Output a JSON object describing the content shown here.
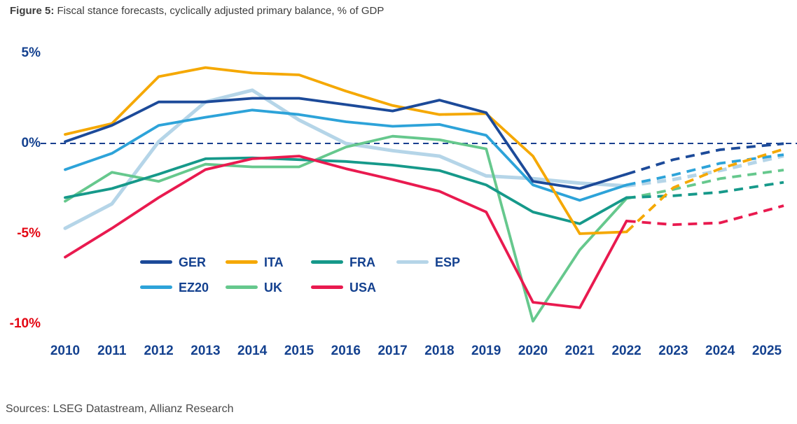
{
  "title": {
    "prefix": "Figure 5:",
    "text": " Fiscal stance forecasts, cyclically adjusted primary balance, % of GDP"
  },
  "footer": {
    "sources": "Sources: LSEG Datastream, Allianz Research"
  },
  "colors": {
    "axis_navy": "#14418f",
    "axis_red": "#e30613",
    "zero_line_navy": "#1a4090",
    "title_gray": "#3d3d3d",
    "sources_gray": "#4a4a4a"
  },
  "chart_data": {
    "type": "line",
    "title": "Fiscal stance forecasts, cyclically adjusted primary balance, % of GDP",
    "grid": false,
    "legend_position": "inside-bottom-left",
    "x": [
      2010,
      2011,
      2012,
      2013,
      2014,
      2015,
      2016,
      2017,
      2018,
      2019,
      2020,
      2021,
      2022,
      2023,
      2024,
      2025
    ],
    "x_labels": [
      "2010",
      "2011",
      "2012",
      "2013",
      "2014",
      "2015",
      "2016",
      "2017",
      "2018",
      "2019",
      "2020",
      "2021",
      "2022",
      "2023",
      "2024",
      "2025"
    ],
    "forecast_start_year": 2022,
    "forecast_style": "dashed",
    "ylim": [
      -10.5,
      5.5
    ],
    "yticks": [
      {
        "label": "5%",
        "value": 5,
        "color": "#14418f"
      },
      {
        "label": "0%",
        "value": 0,
        "color": "#14418f"
      },
      {
        "label": "-5%",
        "value": -5,
        "color": "#e30613"
      },
      {
        "label": "-10%",
        "value": -10,
        "color": "#e30613"
      }
    ],
    "zero_line": {
      "value": 0,
      "style": "dashed",
      "color": "#1a4090"
    },
    "series": [
      {
        "name": "GER",
        "color": "#1c4a99",
        "values": [
          0.1,
          1.0,
          2.3,
          2.3,
          2.5,
          2.5,
          2.15,
          1.8,
          2.4,
          1.7,
          -2.1,
          -2.5,
          -1.7,
          -0.9,
          -0.35,
          -0.1
        ]
      },
      {
        "name": "ITA",
        "color": "#f5a800",
        "values": [
          0.5,
          1.1,
          3.7,
          4.2,
          3.9,
          3.8,
          2.9,
          2.1,
          1.6,
          1.65,
          -0.7,
          -5.0,
          -4.9,
          -2.45,
          -1.4,
          -0.6
        ]
      },
      {
        "name": "FRA",
        "color": "#16998a",
        "values": [
          -3.0,
          -2.5,
          -1.7,
          -0.85,
          -0.8,
          -0.9,
          -1.0,
          -1.2,
          -1.5,
          -2.3,
          -3.8,
          -4.45,
          -3.0,
          -2.9,
          -2.7,
          -2.3
        ]
      },
      {
        "name": "ESP",
        "color": "#b5d5e8",
        "values": [
          -4.7,
          -3.35,
          0.1,
          2.3,
          2.95,
          1.3,
          0.0,
          -0.4,
          -0.7,
          -1.8,
          -1.95,
          -2.2,
          -2.35,
          -2.0,
          -1.5,
          -0.9
        ]
      },
      {
        "name": "EZ20",
        "color": "#2da3d9",
        "values": [
          -1.45,
          -0.55,
          1.0,
          1.45,
          1.85,
          1.6,
          1.2,
          0.95,
          1.05,
          0.45,
          -2.3,
          -3.15,
          -2.3,
          -1.75,
          -1.1,
          -0.75
        ]
      },
      {
        "name": "UK",
        "color": "#66c88d",
        "values": [
          -3.2,
          -1.6,
          -2.1,
          -1.15,
          -1.3,
          -1.3,
          -0.2,
          0.4,
          0.2,
          -0.3,
          -9.85,
          -5.9,
          -3.05,
          -2.55,
          -1.95,
          -1.6
        ]
      },
      {
        "name": "USA",
        "color": "#e91a4f",
        "values": [
          -6.3,
          -4.7,
          -3.0,
          -1.45,
          -0.85,
          -0.7,
          -1.4,
          -2.0,
          -2.65,
          -3.8,
          -8.8,
          -9.1,
          -4.3,
          -4.5,
          -4.4,
          -3.7
        ]
      }
    ]
  }
}
